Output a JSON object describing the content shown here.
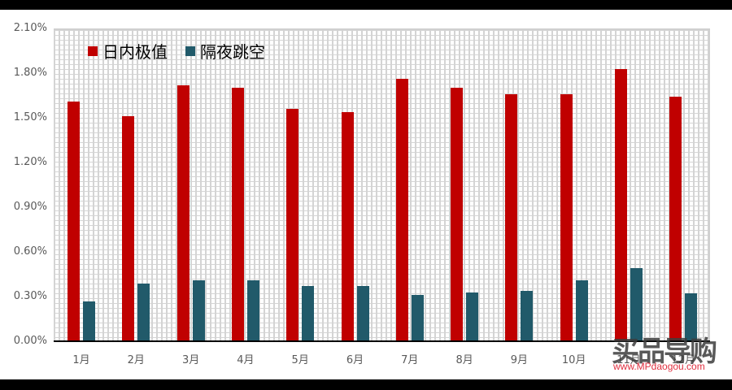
{
  "chart_data": {
    "type": "bar",
    "title": "",
    "xlabel": "",
    "ylabel": "",
    "ylim": [
      0,
      0.021
    ],
    "yticks": [
      "0.00%",
      "0.30%",
      "0.60%",
      "0.90%",
      "1.20%",
      "1.50%",
      "1.80%",
      "2.10%"
    ],
    "grid": "brick-pattern background",
    "legend_position": "top-left inside plot",
    "categories": [
      "1月",
      "2月",
      "3月",
      "4月",
      "5月",
      "6月",
      "7月",
      "8月",
      "9月",
      "10月",
      "11月",
      "12月"
    ],
    "series": [
      {
        "name": "日内极值",
        "color": "#c00000",
        "values": [
          0.0161,
          0.0151,
          0.0172,
          0.017,
          0.0156,
          0.0154,
          0.0176,
          0.017,
          0.0166,
          0.0166,
          0.0183,
          0.0164
        ]
      },
      {
        "name": "隔夜跳空",
        "color": "#215a6a",
        "values": [
          0.0027,
          0.0039,
          0.0041,
          0.0041,
          0.0037,
          0.0037,
          0.0031,
          0.0033,
          0.0034,
          0.0041,
          0.0049,
          0.0032
        ]
      }
    ]
  },
  "legend": {
    "items": [
      {
        "label": "日内极值",
        "color": "#c00000"
      },
      {
        "label": "隔夜跳空",
        "color": "#215a6a"
      }
    ]
  },
  "watermark": {
    "text": "买品导购",
    "url": "www.MPdaogou.com"
  }
}
